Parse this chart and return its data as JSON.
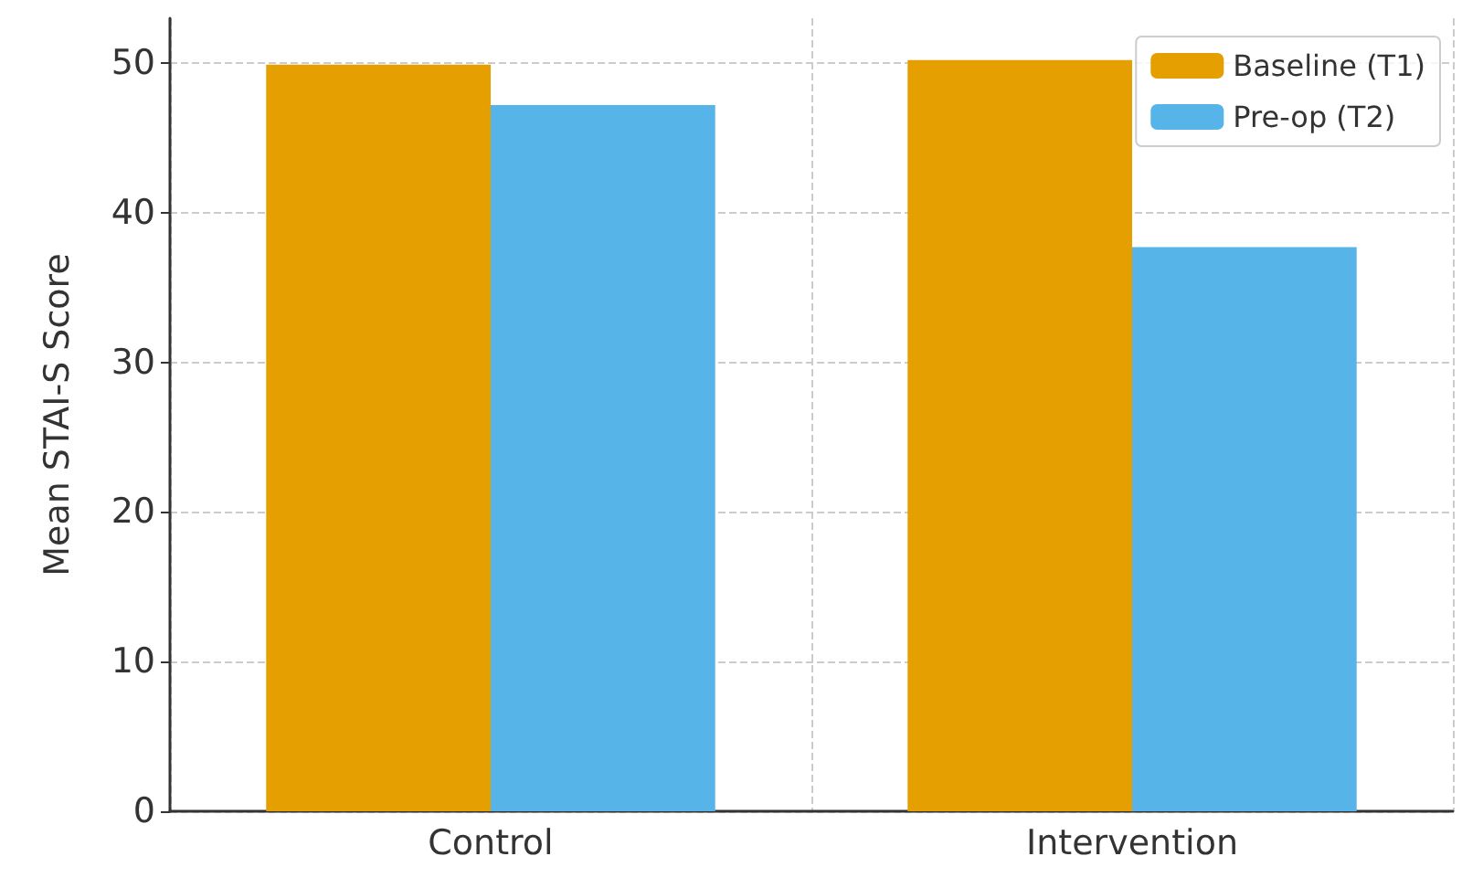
{
  "chart_data": {
    "type": "bar",
    "ylabel": "Mean STAI-S Score",
    "categories": [
      "Control",
      "Intervention"
    ],
    "series": [
      {
        "name": "Baseline (T1)",
        "color": "#e69f00",
        "values": [
          49.9,
          50.2
        ]
      },
      {
        "name": "Pre-op (T2)",
        "color": "#56b4e9",
        "values": [
          47.2,
          37.7
        ]
      }
    ],
    "ylim": [
      0,
      53
    ],
    "yticks": [
      0,
      10,
      20,
      30,
      40,
      50
    ],
    "grid": true,
    "legend": "top right"
  }
}
